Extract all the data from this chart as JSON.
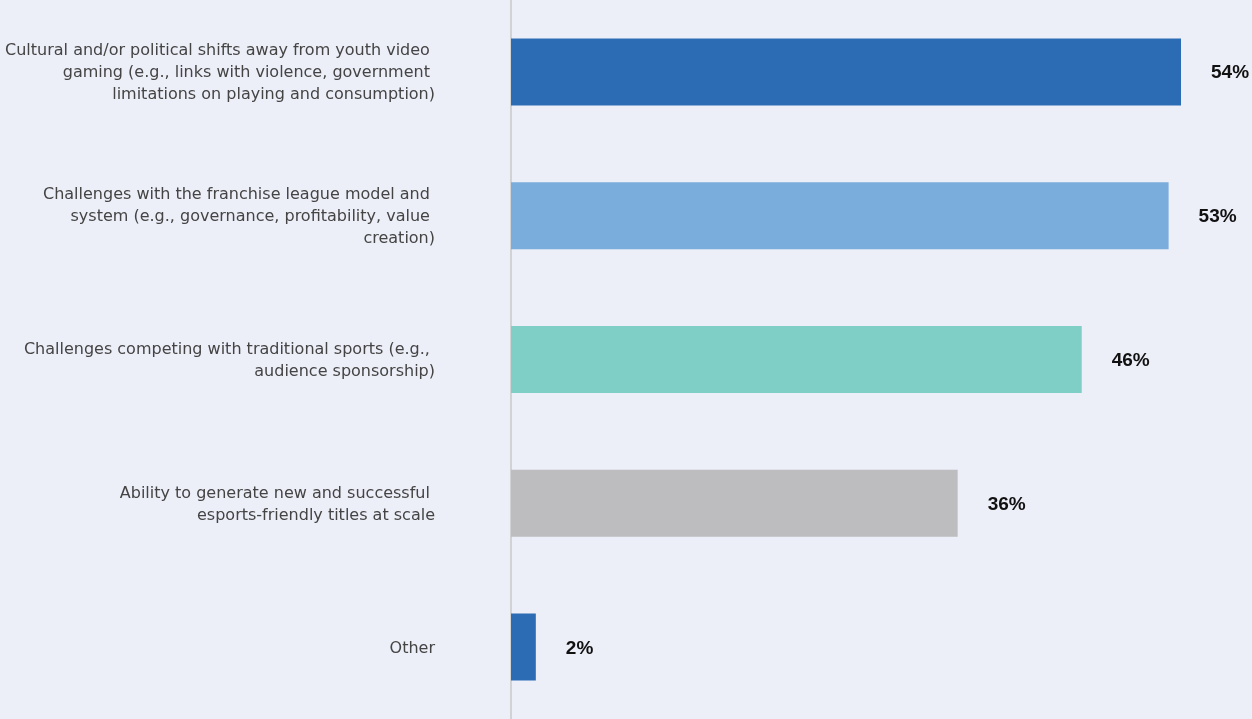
{
  "chart_data": {
    "type": "bar",
    "orientation": "horizontal",
    "categories": [
      "Cultural and/or political shifts away from youth video gaming (e.g., links with violence, government limitations on playing and consumption)",
      "Challenges with the franchise league model and system (e.g., governance, profitability, value creation)",
      "Challenges competing with traditional sports (e.g., audience sponsorship)",
      "Ability to generate new and successful esports-friendly titles at scale",
      "Other"
    ],
    "values": [
      54,
      53,
      46,
      36,
      2
    ],
    "colors": [
      "#2b6cb4",
      "#7aacdc",
      "#80cfc6",
      "#bdbdbf",
      "#2b6cb4"
    ],
    "value_labels": [
      "54%",
      "53%",
      "46%",
      "36%",
      "2%"
    ],
    "grid": false
  }
}
